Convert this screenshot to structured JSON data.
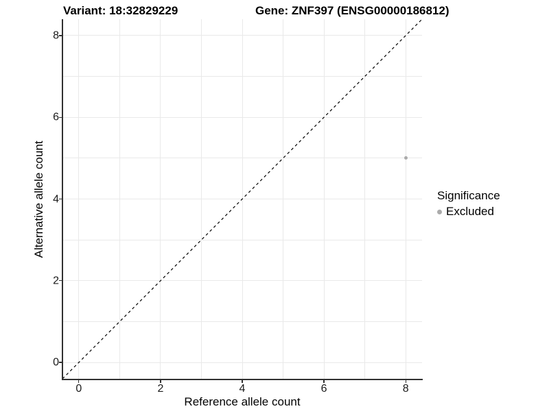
{
  "figure": {
    "title_variant": "Variant: 18:32829229",
    "title_gene": "Gene: ZNF397 (ENSG00000186812)"
  },
  "axes": {
    "x_label": "Reference allele count",
    "y_label": "Alternative allele count"
  },
  "legend": {
    "title": "Significance",
    "entries": [
      {
        "label": "Excluded",
        "color": "#ababab",
        "marker": "circle"
      }
    ]
  },
  "chart_data": {
    "type": "scatter",
    "title": "Variant: 18:32829229 | Gene: ZNF397 (ENSG00000186812)",
    "xlabel": "Reference allele count",
    "ylabel": "Alternative allele count",
    "xlim": [
      -0.4,
      8.4
    ],
    "ylim": [
      -0.4,
      8.4
    ],
    "x_major_ticks": [
      0,
      2,
      4,
      6,
      8
    ],
    "y_major_ticks": [
      0,
      2,
      4,
      6,
      8
    ],
    "gridline_values": [
      0,
      1,
      2,
      3,
      4,
      5,
      6,
      7,
      8
    ],
    "grid": "on",
    "series": [
      {
        "name": "Excluded",
        "points": [
          {
            "x": 8,
            "y": 5
          }
        ]
      }
    ],
    "reference_line": {
      "type": "identity",
      "style": "dashed",
      "from": [
        -0.4,
        -0.4
      ],
      "to": [
        8.4,
        8.4
      ]
    },
    "legend_position": "right",
    "colors": {
      "point": "#ababab",
      "grid": "#e9e9e9",
      "axis": "#303030",
      "reference_line": "#000000"
    }
  }
}
